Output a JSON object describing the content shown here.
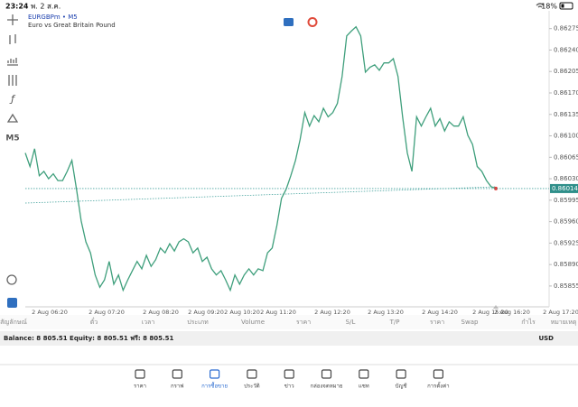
{
  "status_bar": {
    "time": "23:24",
    "date": "พ. 2 ส.ค.",
    "battery": "18%"
  },
  "toolbar": {
    "timeframe": "M5"
  },
  "chart_data": {
    "type": "line",
    "title": "EURGBPm • M5",
    "subtitle": "Euro vs Great Britain Pound",
    "color": "#3f9f7c",
    "x_labels": [
      "2 Aug 06:20",
      "2 Aug 07:20",
      "2 Aug 08:20",
      "2 Aug 09:20",
      "2 Aug 10:20",
      "2 Aug 11:20",
      "2 Aug 12:20",
      "2 Aug 13:20",
      "2 Aug 14:20",
      "2 Aug 15:20",
      "2 Aug 16:20",
      "2 Aug 17:20"
    ],
    "values": [
      0.86072,
      0.8605,
      0.86079,
      0.86035,
      0.86042,
      0.8603,
      0.86038,
      0.86027,
      0.86027,
      0.86042,
      0.8606,
      0.86013,
      0.85961,
      0.85927,
      0.85909,
      0.85873,
      0.85853,
      0.85865,
      0.85895,
      0.85858,
      0.85873,
      0.85848,
      0.85865,
      0.8588,
      0.85895,
      0.85883,
      0.85905,
      0.85887,
      0.85898,
      0.85917,
      0.85909,
      0.85924,
      0.85912,
      0.85927,
      0.85932,
      0.85927,
      0.85909,
      0.85917,
      0.85895,
      0.85902,
      0.85883,
      0.85873,
      0.8588,
      0.85865,
      0.85848,
      0.85873,
      0.85858,
      0.85873,
      0.85883,
      0.85873,
      0.85883,
      0.8588,
      0.85909,
      0.85917,
      0.85954,
      0.85998,
      0.86013,
      0.86035,
      0.8606,
      0.86094,
      0.86138,
      0.86116,
      0.86133,
      0.86123,
      0.86145,
      0.86131,
      0.86138,
      0.86153,
      0.86197,
      0.86263,
      0.86271,
      0.86278,
      0.86263,
      0.86204,
      0.86212,
      0.86216,
      0.86207,
      0.86219,
      0.86219,
      0.86226,
      0.86197,
      0.86131,
      0.86072,
      0.86042,
      0.86131,
      0.86116,
      0.86131,
      0.86145,
      0.86116,
      0.86128,
      0.86108,
      0.86123,
      0.86116,
      0.86116,
      0.86131,
      0.86101,
      0.86086,
      0.8605,
      0.86042,
      0.86027,
      0.86017,
      0.86014
    ],
    "current_price": 0.86014,
    "ylim": [
      0.85821,
      0.86304
    ],
    "yticks": [
      0.86275,
      {
        "value": 0.8624,
        "label": "0.86240"
      },
      0.86205,
      {
        "value": 0.8617,
        "label": "0.86170"
      },
      0.86135,
      {
        "value": 0.861,
        "label": "0.86100"
      },
      0.86065,
      {
        "value": 0.8603,
        "label": "0.86030"
      },
      0.85995,
      {
        "value": 0.8596,
        "label": "0.85960"
      },
      0.85925,
      {
        "value": 0.8589,
        "label": "0.85890"
      },
      0.85855
    ],
    "grid": false
  },
  "positions_table": {
    "headers": [
      "สัญลักษณ์",
      "ตั๋ว",
      "เวลา",
      "ประเภท",
      "Volume",
      "ราคา",
      "S/L",
      "T/P",
      "ราคา",
      "Swap",
      "กำไร",
      "หมายเหตุ"
    ]
  },
  "account": {
    "summary": "Balance: 8 805.51 Equity: 8 805.51 ฟรี: 8 805.51",
    "currency": "USD"
  },
  "nav": {
    "items": [
      "ราคา",
      "กราฟ",
      "การซื้อขาย",
      "ประวัติ",
      "ข่าว",
      "กล่องจดหมาย",
      "แชท",
      "บัญชี",
      "การตั้งค่า"
    ],
    "active": 2
  }
}
